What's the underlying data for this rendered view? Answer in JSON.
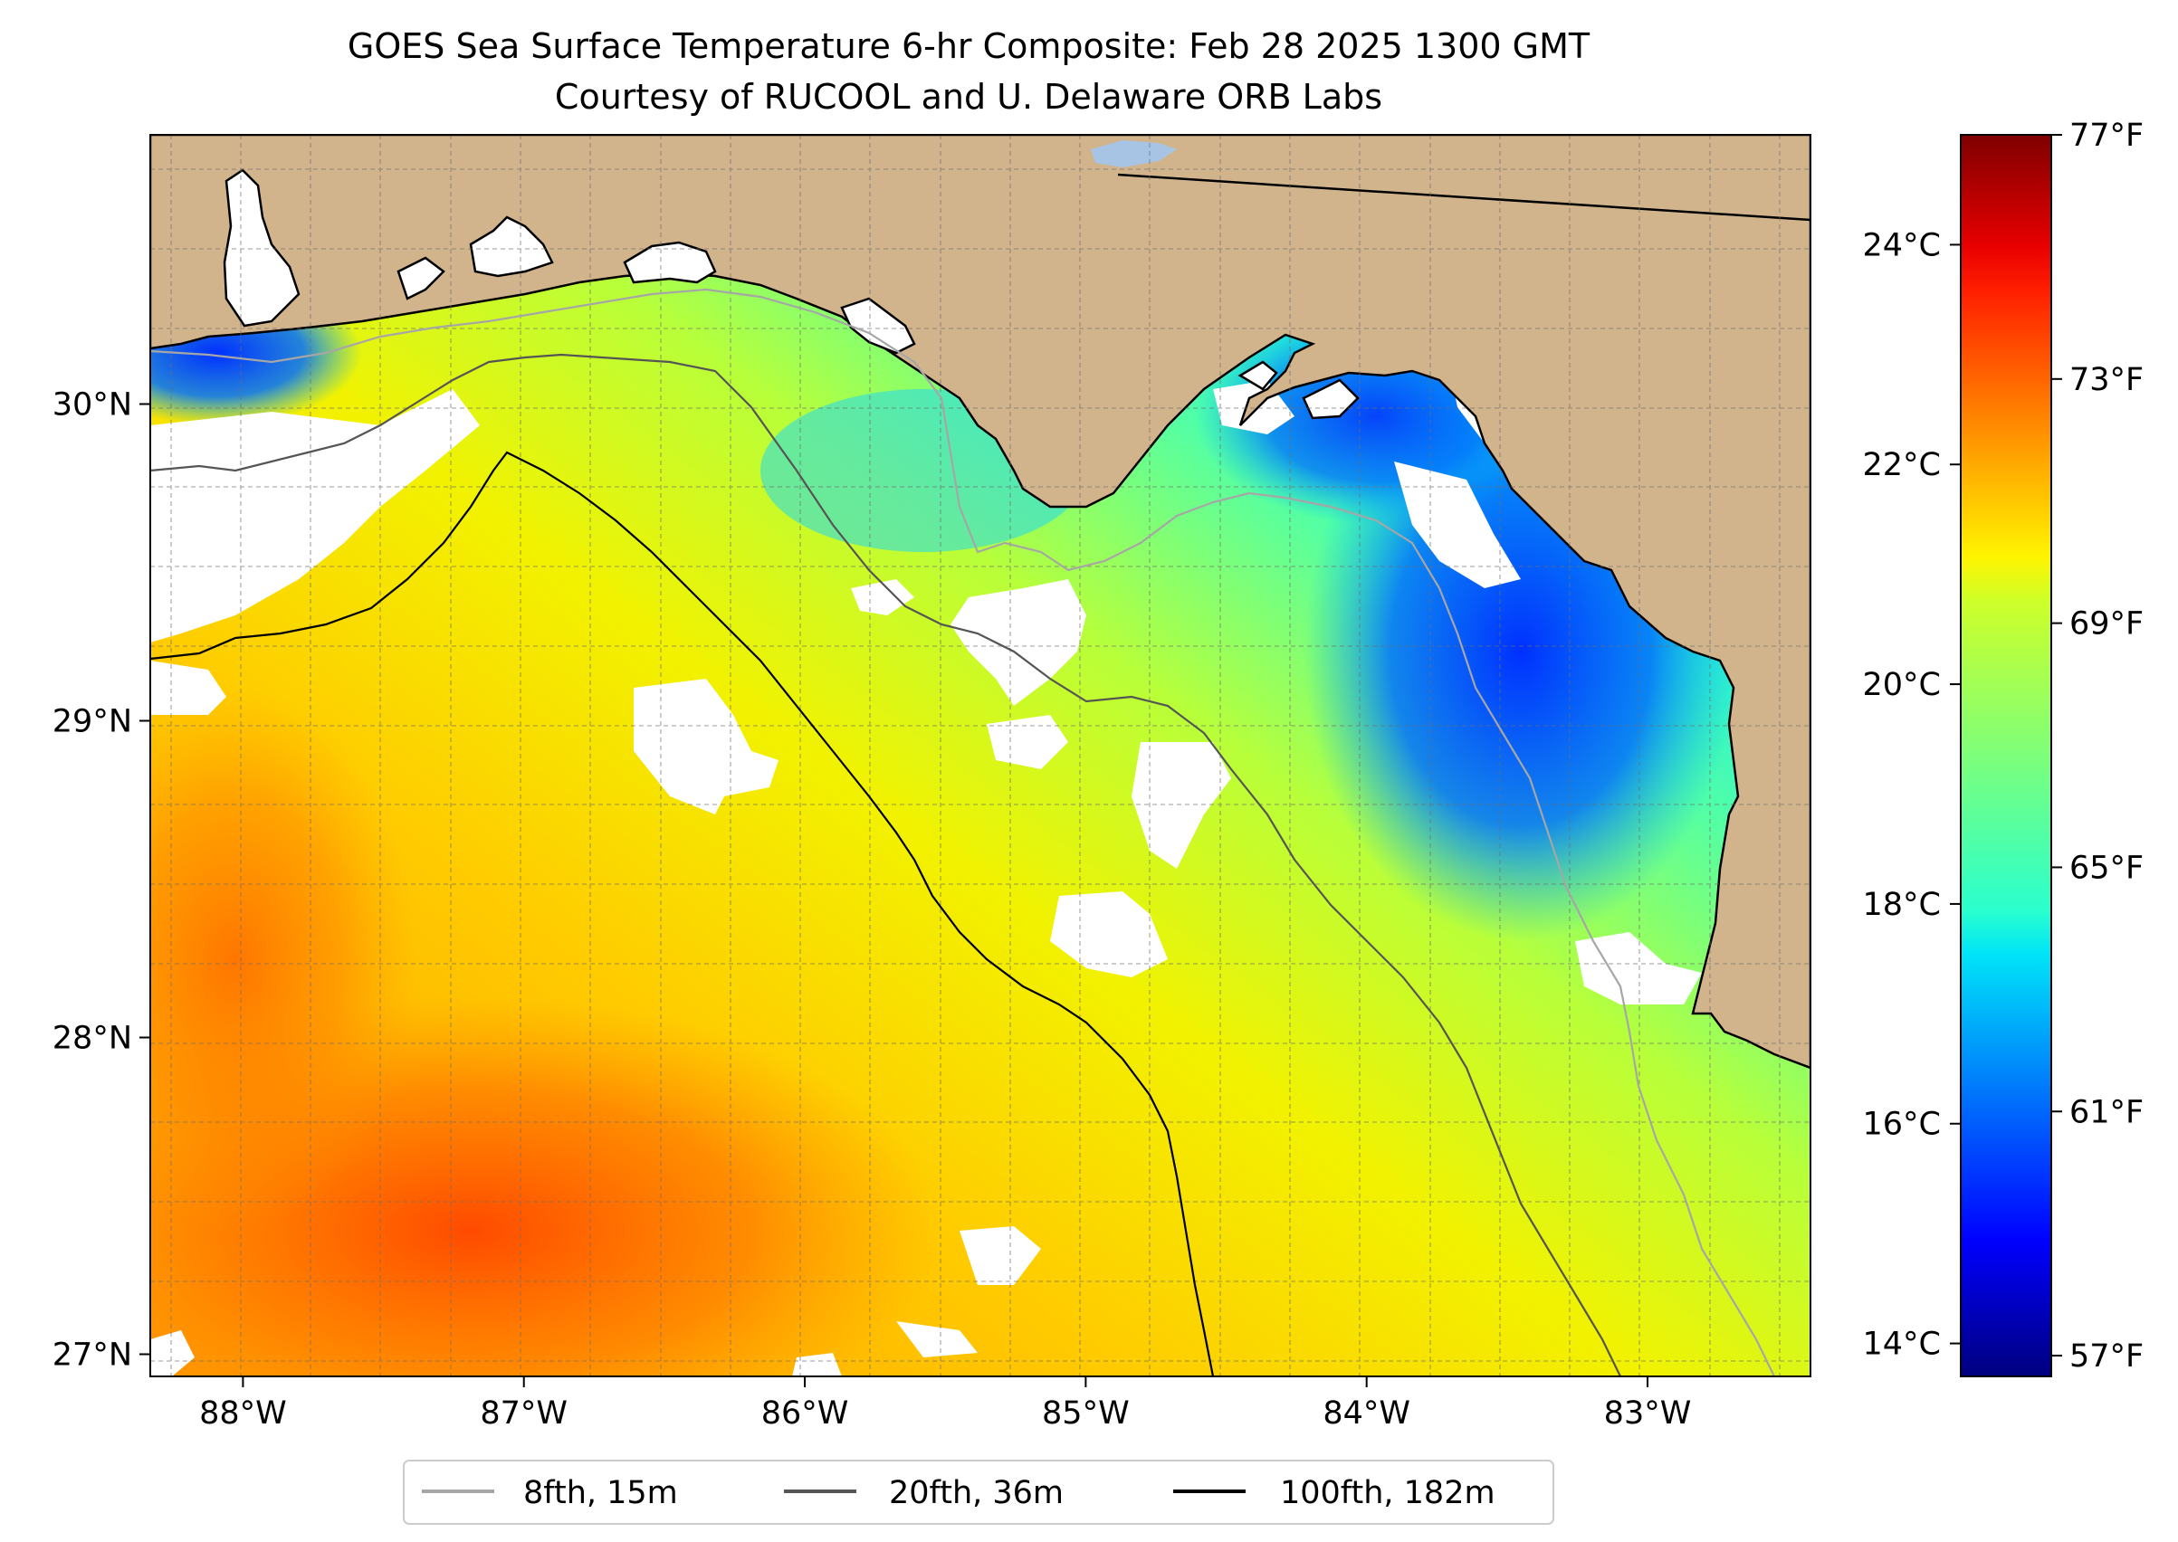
{
  "title": {
    "line1": "GOES Sea Surface Temperature 6-hr Composite: Feb 28 2025 1300 GMT",
    "line2": "Courtesy of RUCOOL and U. Delaware ORB Labs"
  },
  "map": {
    "lon_range": [
      -88.33,
      -82.42
    ],
    "lat_range": [
      26.93,
      30.85
    ],
    "lon_ticks": [
      {
        "value": -88,
        "label": "88°W"
      },
      {
        "value": -87,
        "label": "87°W"
      },
      {
        "value": -86,
        "label": "86°W"
      },
      {
        "value": -85,
        "label": "85°W"
      },
      {
        "value": -84,
        "label": "84°W"
      },
      {
        "value": -83,
        "label": "83°W"
      }
    ],
    "lat_ticks": [
      {
        "value": 27,
        "label": "27°N"
      },
      {
        "value": 28,
        "label": "28°N"
      },
      {
        "value": 29,
        "label": "29°N"
      },
      {
        "value": 30,
        "label": "30°N"
      }
    ],
    "grid": true,
    "colors": {
      "land": "#d2b48c",
      "no_data": "#ffffff",
      "lake": "#a7c4e5"
    }
  },
  "colorbar": {
    "colormap": "jet",
    "range_c": [
      13.7,
      25.0
    ],
    "celsius_ticks": [
      {
        "value": 14,
        "label": "14°C"
      },
      {
        "value": 16,
        "label": "16°C"
      },
      {
        "value": 18,
        "label": "18°C"
      },
      {
        "value": 20,
        "label": "20°C"
      },
      {
        "value": 22,
        "label": "22°C"
      },
      {
        "value": 24,
        "label": "24°C"
      }
    ],
    "fahrenheit_ticks": [
      {
        "value": 57,
        "label": "57°F"
      },
      {
        "value": 61,
        "label": "61°F"
      },
      {
        "value": 65,
        "label": "65°F"
      },
      {
        "value": 69,
        "label": "69°F"
      },
      {
        "value": 73,
        "label": "73°F"
      },
      {
        "value": 77,
        "label": "77°F"
      }
    ]
  },
  "legend": {
    "placement": "bottom-center",
    "items": [
      {
        "label": "8fth, 15m",
        "color": "#a6a6a6"
      },
      {
        "label": "20fth, 36m",
        "color": "#555555"
      },
      {
        "label": "100fth, 182m",
        "color": "#000000"
      }
    ]
  }
}
